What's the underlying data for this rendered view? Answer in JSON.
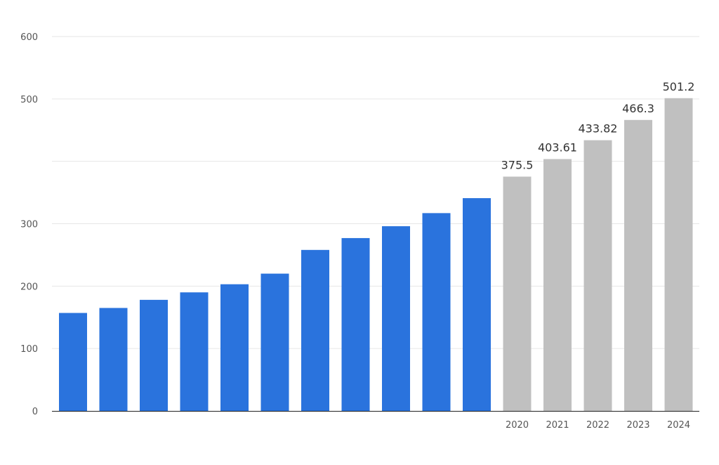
{
  "chart_data": {
    "type": "bar",
    "categories": [
      "",
      "",
      "",
      "",
      "",
      "",
      "",
      "",
      "",
      "",
      "",
      "2020",
      "2021",
      "2022",
      "2023",
      "2024"
    ],
    "values": [
      157,
      165,
      178,
      190,
      203,
      220,
      258,
      277,
      296,
      317,
      341,
      375.5,
      403.61,
      433.82,
      466.3,
      501.2
    ],
    "data_labels": [
      "",
      "",
      "",
      "",
      "",
      "",
      "",
      "",
      "",
      "",
      "",
      "375.5",
      "403.61",
      "433.82",
      "466.3",
      "501.2"
    ],
    "series_colors": [
      "#2a73dd",
      "#2a73dd",
      "#2a73dd",
      "#2a73dd",
      "#2a73dd",
      "#2a73dd",
      "#2a73dd",
      "#2a73dd",
      "#2a73dd",
      "#2a73dd",
      "#2a73dd",
      "#c0c0c0",
      "#c0c0c0",
      "#c0c0c0",
      "#c0c0c0",
      "#c0c0c0"
    ],
    "y_ticks": [
      "0",
      "100",
      "200",
      "300",
      "",
      "500",
      "600"
    ],
    "y_tick_values": [
      0,
      100,
      200,
      300,
      400,
      500,
      600
    ],
    "ylim": [
      0,
      600
    ],
    "grid": true,
    "title": "",
    "xlabel": "",
    "ylabel": ""
  }
}
